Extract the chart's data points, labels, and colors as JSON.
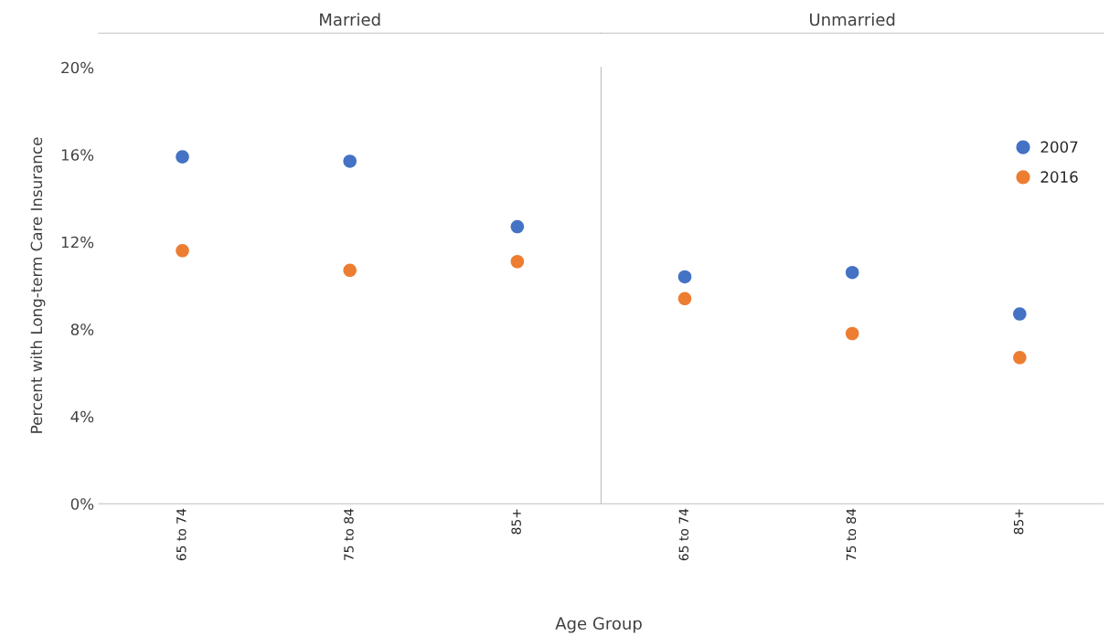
{
  "chart_data": [
    {
      "type": "scatter",
      "title": "Married",
      "xlabel": "Age Group",
      "ylabel": "Percent with Long-term Care Insurance",
      "categories": [
        "65 to 74",
        "75 to 84",
        "85+"
      ],
      "series": [
        {
          "name": "2007",
          "color": "#4472c4",
          "values": [
            15.9,
            15.7,
            12.7
          ]
        },
        {
          "name": "2016",
          "color": "#ed7d31",
          "values": [
            11.6,
            10.7,
            11.1
          ]
        }
      ],
      "ylim": [
        0,
        20
      ],
      "yticks": [
        {
          "value": 0,
          "label": "0%"
        },
        {
          "value": 4,
          "label": "4%"
        },
        {
          "value": 8,
          "label": "8%"
        },
        {
          "value": 12,
          "label": "12%"
        },
        {
          "value": 16,
          "label": "16%"
        },
        {
          "value": 20,
          "label": "20%"
        }
      ],
      "marker": "circle",
      "grid": false,
      "legend": "top right"
    },
    {
      "type": "scatter",
      "title": "Unmarried",
      "categories": [
        "65 to 74",
        "75 to 84",
        "85+"
      ],
      "series": [
        {
          "name": "2007",
          "color": "#4472c4",
          "values": [
            10.4,
            10.6,
            8.7
          ]
        },
        {
          "name": "2016",
          "color": "#ed7d31",
          "values": [
            9.4,
            7.8,
            6.7
          ]
        }
      ],
      "ylim": [
        0,
        20
      ],
      "tick_labels": "x",
      "marker": "circle",
      "grid": false
    }
  ]
}
